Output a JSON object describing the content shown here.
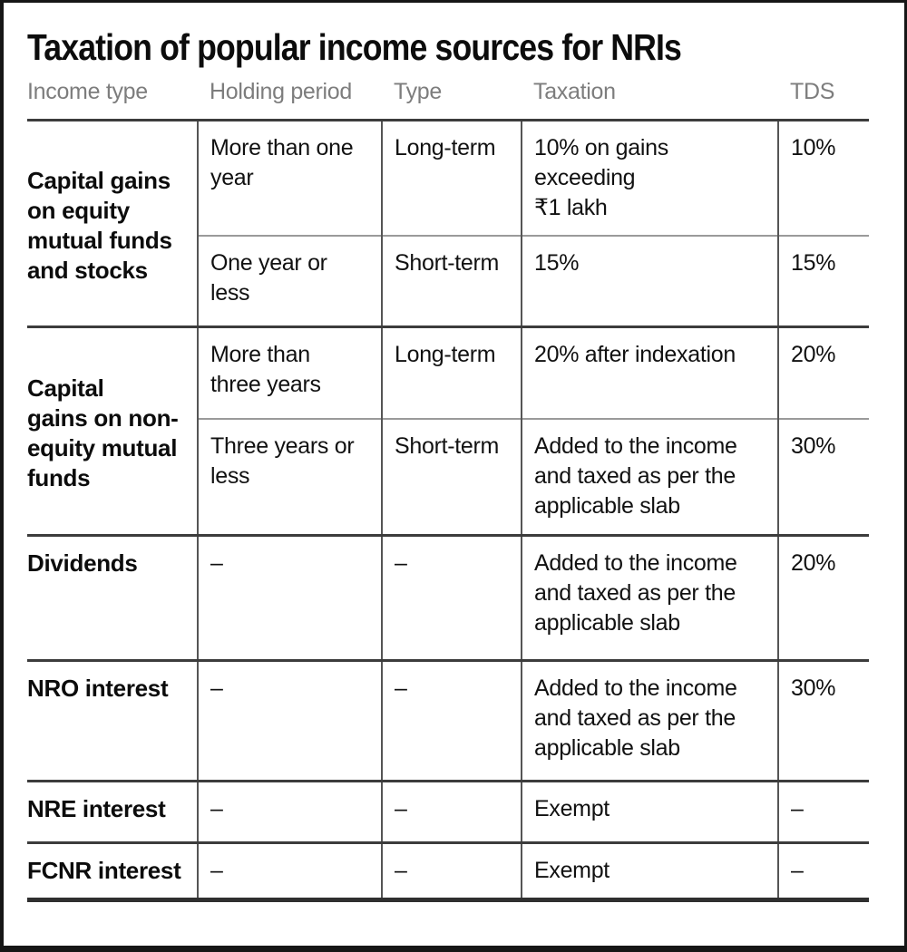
{
  "title": "Taxation of popular income sources for NRIs",
  "colors": {
    "header_text": "#7d7d7d",
    "body_text": "#111111",
    "rule_dark": "#3c3c3c",
    "rule_gray": "#9a9a9a",
    "vline": "#555555",
    "frame": "#161616"
  },
  "table": {
    "headers": [
      "Income type",
      "Holding period",
      "Type",
      "Taxation",
      "TDS"
    ],
    "groups": [
      {
        "income_type": "Capital gains\non equity\nmutual funds\nand stocks",
        "rows": [
          {
            "holding_period": "More than one\nyear",
            "type": "Long-term",
            "taxation": "10% on gains\nexceeding\n₹1 lakh",
            "tds": "10%"
          },
          {
            "holding_period": "One year or\nless",
            "type": "Short-term",
            "taxation": "15%",
            "tds": "15%"
          }
        ]
      },
      {
        "income_type": "Capital\ngains on non-\nequity mutual\nfunds",
        "rows": [
          {
            "holding_period": "More than\nthree years",
            "type": "Long-term",
            "taxation": "20% after indexation",
            "tds": "20%"
          },
          {
            "holding_period": "Three years or\nless",
            "type": "Short-term",
            "taxation": "Added to the income\nand taxed as per the\napplicable slab",
            "tds": "30%"
          }
        ]
      },
      {
        "income_type": "Dividends",
        "rows": [
          {
            "holding_period": "–",
            "type": "–",
            "taxation": "Added to the income\nand taxed as per the\napplicable slab",
            "tds": "20%"
          }
        ]
      },
      {
        "income_type": "NRO interest",
        "rows": [
          {
            "holding_period": "–",
            "type": "–",
            "taxation": "Added to the income\nand taxed as per the\napplicable slab",
            "tds": "30%"
          }
        ]
      },
      {
        "income_type": "NRE interest",
        "rows": [
          {
            "holding_period": "–",
            "type": "–",
            "taxation": "Exempt",
            "tds": "–"
          }
        ]
      },
      {
        "income_type": "FCNR interest",
        "rows": [
          {
            "holding_period": "–",
            "type": "–",
            "taxation": "Exempt",
            "tds": "–"
          }
        ]
      }
    ]
  }
}
